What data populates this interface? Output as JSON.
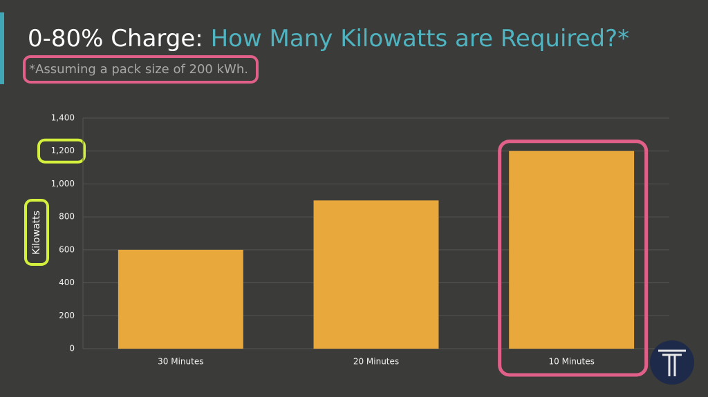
{
  "chart_data": {
    "type": "bar",
    "title": "0-80% Charge:",
    "title_accent": "How Many Kilowatts are Required?*",
    "subtitle": "*Assuming a pack size of 200 kWh.",
    "y_label": "Kilowatts",
    "categories": [
      "30 Minutes",
      "20 Minutes",
      "10 Minutes"
    ],
    "values": [
      600,
      900,
      1200
    ],
    "color": "#e8a83c",
    "ylim": [
      0,
      1400
    ],
    "yticks": [
      0,
      200,
      400,
      600,
      800,
      {
        "value": 1000,
        "label": "1,000"
      },
      {
        "value": 1200,
        "label": "1,200"
      },
      {
        "value": 1400,
        "label": "1,400"
      }
    ],
    "grid": true
  }
}
